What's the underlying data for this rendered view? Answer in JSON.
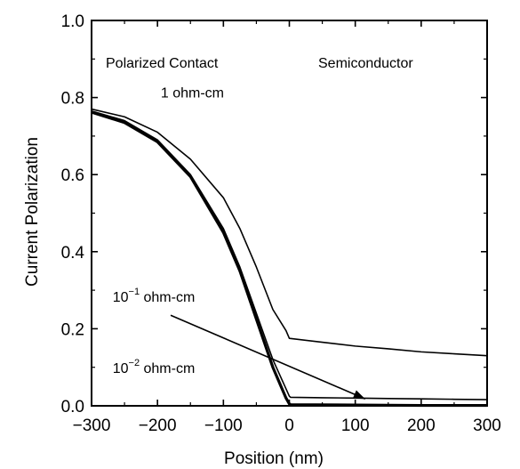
{
  "chart_data": {
    "type": "line",
    "xlabel": "Position (nm)",
    "ylabel": "Current Polarization",
    "xlim": [
      -300,
      300
    ],
    "ylim": [
      0,
      1.0
    ],
    "x_ticks": [
      -300,
      -200,
      -100,
      0,
      100,
      200,
      300
    ],
    "y_ticks": [
      0.0,
      0.2,
      0.4,
      0.6,
      0.8,
      1.0
    ],
    "x_tick_labels": [
      "−300",
      "−200",
      "−100",
      "0",
      "100",
      "200",
      "300"
    ],
    "y_tick_labels": [
      "0.0",
      "0.2",
      "0.4",
      "0.6",
      "0.8",
      "1.0"
    ],
    "grid": false,
    "regions": {
      "left": "Polarized Contact",
      "right": "Semiconductor"
    },
    "series": [
      {
        "name": "1 ohm-cm",
        "x": [
          -300,
          -250,
          -200,
          -150,
          -100,
          -75,
          -50,
          -25,
          -5,
          0,
          50,
          100,
          150,
          200,
          250,
          300
        ],
        "y": [
          0.77,
          0.75,
          0.71,
          0.64,
          0.54,
          0.46,
          0.36,
          0.25,
          0.195,
          0.175,
          0.165,
          0.155,
          0.148,
          0.14,
          0.135,
          0.13
        ],
        "stroke": 1.6
      },
      {
        "name": "10⁻¹ ohm-cm",
        "x": [
          -300,
          -250,
          -200,
          -150,
          -100,
          -75,
          -50,
          -25,
          0,
          2,
          50,
          100,
          150,
          200,
          250,
          300
        ],
        "y": [
          0.765,
          0.74,
          0.69,
          0.6,
          0.46,
          0.36,
          0.24,
          0.12,
          0.025,
          0.022,
          0.021,
          0.02,
          0.019,
          0.018,
          0.017,
          0.016
        ],
        "stroke": 1.6
      },
      {
        "name": "10⁻² ohm-cm",
        "x": [
          -300,
          -250,
          -200,
          -150,
          -100,
          -75,
          -50,
          -25,
          -5,
          0,
          2,
          100,
          200,
          300
        ],
        "y": [
          0.762,
          0.735,
          0.685,
          0.595,
          0.45,
          0.35,
          0.225,
          0.1,
          0.02,
          0.005,
          0.003,
          0.002,
          0.001,
          0.001
        ],
        "stroke": 3.2
      }
    ],
    "annotations": [
      {
        "text": "1 ohm-cm",
        "base": "1 ohm-cm",
        "sup": "",
        "x": -195,
        "y": 0.8
      },
      {
        "text": "10⁻¹ ohm-cm",
        "base": "10",
        "sup": "−1",
        "rest": " ohm-cm",
        "x": -268,
        "y": 0.27
      },
      {
        "text": "10⁻² ohm-cm",
        "base": "10",
        "sup": "−2",
        "rest": " ohm-cm",
        "x": -268,
        "y": 0.085
      }
    ],
    "arrow": {
      "from": [
        -180,
        0.235
      ],
      "to": [
        115,
        0.018
      ]
    }
  }
}
